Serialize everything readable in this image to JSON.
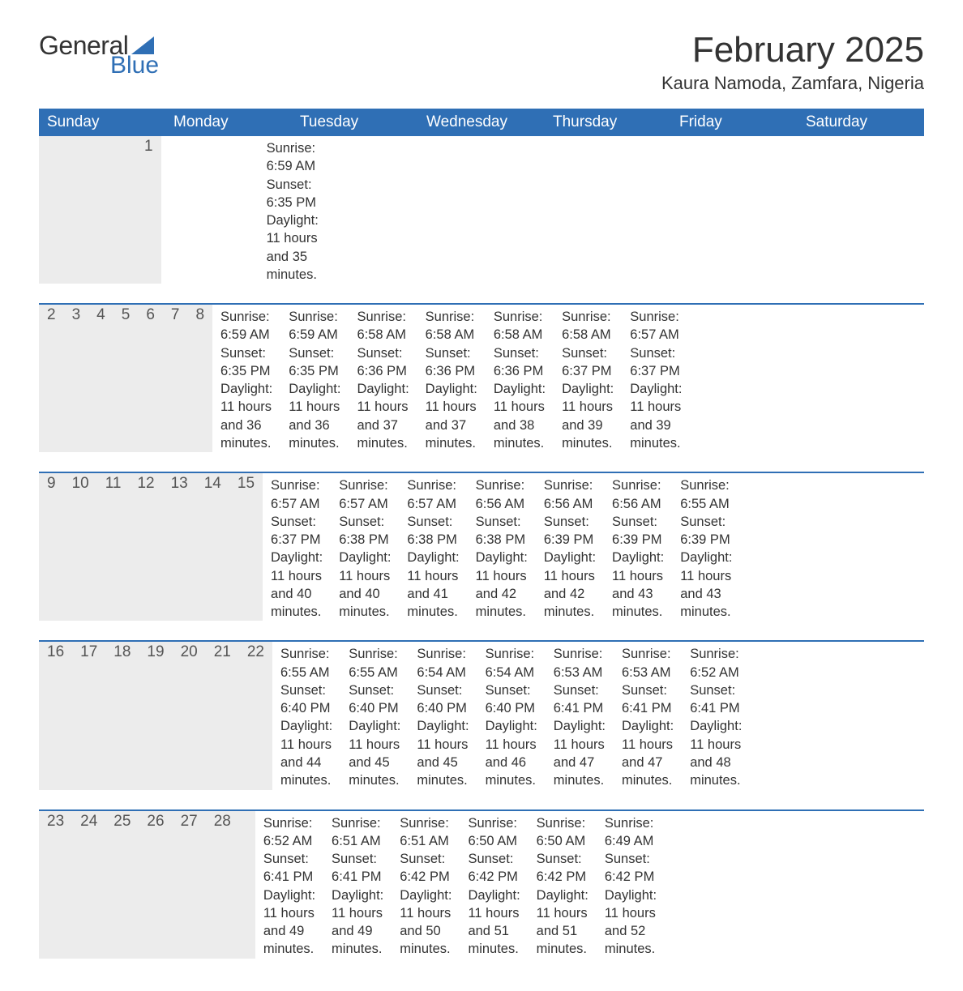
{
  "brand": {
    "general": "General",
    "blue": "Blue",
    "sail_color": "#2f6fb5"
  },
  "title": "February 2025",
  "location": "Kaura Namoda, Zamfara, Nigeria",
  "colors": {
    "header_bg": "#2f6fb5",
    "header_text": "#ffffff",
    "daynum_bg": "#ececec",
    "week_border": "#2f6fb5",
    "body_text": "#333333",
    "background": "#ffffff"
  },
  "fonts": {
    "title_size_pt": 33,
    "location_size_pt": 17,
    "weekday_size_pt": 14,
    "body_size_pt": 12
  },
  "weekdays": [
    "Sunday",
    "Monday",
    "Tuesday",
    "Wednesday",
    "Thursday",
    "Friday",
    "Saturday"
  ],
  "weeks": [
    [
      {
        "day": "",
        "sunrise": "",
        "sunset": "",
        "daylight1": "",
        "daylight2": ""
      },
      {
        "day": "",
        "sunrise": "",
        "sunset": "",
        "daylight1": "",
        "daylight2": ""
      },
      {
        "day": "",
        "sunrise": "",
        "sunset": "",
        "daylight1": "",
        "daylight2": ""
      },
      {
        "day": "",
        "sunrise": "",
        "sunset": "",
        "daylight1": "",
        "daylight2": ""
      },
      {
        "day": "",
        "sunrise": "",
        "sunset": "",
        "daylight1": "",
        "daylight2": ""
      },
      {
        "day": "",
        "sunrise": "",
        "sunset": "",
        "daylight1": "",
        "daylight2": ""
      },
      {
        "day": "1",
        "sunrise": "Sunrise: 6:59 AM",
        "sunset": "Sunset: 6:35 PM",
        "daylight1": "Daylight: 11 hours",
        "daylight2": "and 35 minutes."
      }
    ],
    [
      {
        "day": "2",
        "sunrise": "Sunrise: 6:59 AM",
        "sunset": "Sunset: 6:35 PM",
        "daylight1": "Daylight: 11 hours",
        "daylight2": "and 36 minutes."
      },
      {
        "day": "3",
        "sunrise": "Sunrise: 6:59 AM",
        "sunset": "Sunset: 6:35 PM",
        "daylight1": "Daylight: 11 hours",
        "daylight2": "and 36 minutes."
      },
      {
        "day": "4",
        "sunrise": "Sunrise: 6:58 AM",
        "sunset": "Sunset: 6:36 PM",
        "daylight1": "Daylight: 11 hours",
        "daylight2": "and 37 minutes."
      },
      {
        "day": "5",
        "sunrise": "Sunrise: 6:58 AM",
        "sunset": "Sunset: 6:36 PM",
        "daylight1": "Daylight: 11 hours",
        "daylight2": "and 37 minutes."
      },
      {
        "day": "6",
        "sunrise": "Sunrise: 6:58 AM",
        "sunset": "Sunset: 6:36 PM",
        "daylight1": "Daylight: 11 hours",
        "daylight2": "and 38 minutes."
      },
      {
        "day": "7",
        "sunrise": "Sunrise: 6:58 AM",
        "sunset": "Sunset: 6:37 PM",
        "daylight1": "Daylight: 11 hours",
        "daylight2": "and 39 minutes."
      },
      {
        "day": "8",
        "sunrise": "Sunrise: 6:57 AM",
        "sunset": "Sunset: 6:37 PM",
        "daylight1": "Daylight: 11 hours",
        "daylight2": "and 39 minutes."
      }
    ],
    [
      {
        "day": "9",
        "sunrise": "Sunrise: 6:57 AM",
        "sunset": "Sunset: 6:37 PM",
        "daylight1": "Daylight: 11 hours",
        "daylight2": "and 40 minutes."
      },
      {
        "day": "10",
        "sunrise": "Sunrise: 6:57 AM",
        "sunset": "Sunset: 6:38 PM",
        "daylight1": "Daylight: 11 hours",
        "daylight2": "and 40 minutes."
      },
      {
        "day": "11",
        "sunrise": "Sunrise: 6:57 AM",
        "sunset": "Sunset: 6:38 PM",
        "daylight1": "Daylight: 11 hours",
        "daylight2": "and 41 minutes."
      },
      {
        "day": "12",
        "sunrise": "Sunrise: 6:56 AM",
        "sunset": "Sunset: 6:38 PM",
        "daylight1": "Daylight: 11 hours",
        "daylight2": "and 42 minutes."
      },
      {
        "day": "13",
        "sunrise": "Sunrise: 6:56 AM",
        "sunset": "Sunset: 6:39 PM",
        "daylight1": "Daylight: 11 hours",
        "daylight2": "and 42 minutes."
      },
      {
        "day": "14",
        "sunrise": "Sunrise: 6:56 AM",
        "sunset": "Sunset: 6:39 PM",
        "daylight1": "Daylight: 11 hours",
        "daylight2": "and 43 minutes."
      },
      {
        "day": "15",
        "sunrise": "Sunrise: 6:55 AM",
        "sunset": "Sunset: 6:39 PM",
        "daylight1": "Daylight: 11 hours",
        "daylight2": "and 43 minutes."
      }
    ],
    [
      {
        "day": "16",
        "sunrise": "Sunrise: 6:55 AM",
        "sunset": "Sunset: 6:40 PM",
        "daylight1": "Daylight: 11 hours",
        "daylight2": "and 44 minutes."
      },
      {
        "day": "17",
        "sunrise": "Sunrise: 6:55 AM",
        "sunset": "Sunset: 6:40 PM",
        "daylight1": "Daylight: 11 hours",
        "daylight2": "and 45 minutes."
      },
      {
        "day": "18",
        "sunrise": "Sunrise: 6:54 AM",
        "sunset": "Sunset: 6:40 PM",
        "daylight1": "Daylight: 11 hours",
        "daylight2": "and 45 minutes."
      },
      {
        "day": "19",
        "sunrise": "Sunrise: 6:54 AM",
        "sunset": "Sunset: 6:40 PM",
        "daylight1": "Daylight: 11 hours",
        "daylight2": "and 46 minutes."
      },
      {
        "day": "20",
        "sunrise": "Sunrise: 6:53 AM",
        "sunset": "Sunset: 6:41 PM",
        "daylight1": "Daylight: 11 hours",
        "daylight2": "and 47 minutes."
      },
      {
        "day": "21",
        "sunrise": "Sunrise: 6:53 AM",
        "sunset": "Sunset: 6:41 PM",
        "daylight1": "Daylight: 11 hours",
        "daylight2": "and 47 minutes."
      },
      {
        "day": "22",
        "sunrise": "Sunrise: 6:52 AM",
        "sunset": "Sunset: 6:41 PM",
        "daylight1": "Daylight: 11 hours",
        "daylight2": "and 48 minutes."
      }
    ],
    [
      {
        "day": "23",
        "sunrise": "Sunrise: 6:52 AM",
        "sunset": "Sunset: 6:41 PM",
        "daylight1": "Daylight: 11 hours",
        "daylight2": "and 49 minutes."
      },
      {
        "day": "24",
        "sunrise": "Sunrise: 6:51 AM",
        "sunset": "Sunset: 6:41 PM",
        "daylight1": "Daylight: 11 hours",
        "daylight2": "and 49 minutes."
      },
      {
        "day": "25",
        "sunrise": "Sunrise: 6:51 AM",
        "sunset": "Sunset: 6:42 PM",
        "daylight1": "Daylight: 11 hours",
        "daylight2": "and 50 minutes."
      },
      {
        "day": "26",
        "sunrise": "Sunrise: 6:50 AM",
        "sunset": "Sunset: 6:42 PM",
        "daylight1": "Daylight: 11 hours",
        "daylight2": "and 51 minutes."
      },
      {
        "day": "27",
        "sunrise": "Sunrise: 6:50 AM",
        "sunset": "Sunset: 6:42 PM",
        "daylight1": "Daylight: 11 hours",
        "daylight2": "and 51 minutes."
      },
      {
        "day": "28",
        "sunrise": "Sunrise: 6:49 AM",
        "sunset": "Sunset: 6:42 PM",
        "daylight1": "Daylight: 11 hours",
        "daylight2": "and 52 minutes."
      },
      {
        "day": "",
        "sunrise": "",
        "sunset": "",
        "daylight1": "",
        "daylight2": ""
      }
    ]
  ]
}
